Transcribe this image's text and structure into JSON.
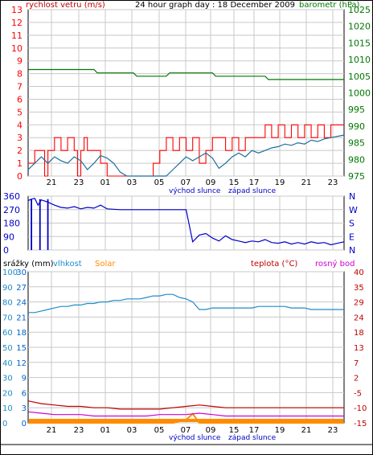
{
  "header": {
    "title": "24 hour graph day : 18 December 2009",
    "left_label": "rychlost vetru (m/s)",
    "right_label": "barometr (hPa)"
  },
  "x_ticks": [
    "21",
    "23",
    "01",
    "03",
    "05",
    "07",
    "09",
    "15",
    "17",
    "19",
    "21",
    "23"
  ],
  "sun_labels": {
    "sunrise": "východ slunce",
    "sunset": "západ slunce"
  },
  "colors": {
    "wind": "#ff0000",
    "wind_avg": "#1e6e9a",
    "barometer": "#007800",
    "direction": "#0000c8",
    "humidity": "#1e8cc8",
    "solar": "#ff8c00",
    "temperature": "#c00000",
    "dewpoint": "#d000d0",
    "precip_axis": "#0064c8",
    "grid": "#c8c8c8"
  },
  "chart_data": [
    {
      "type": "line",
      "title": "24 hour graph day : 18 December 2009",
      "ylabel_left": "rychlost vetru (m/s)",
      "ylabel_right": "barometr (hPa)",
      "ylim_left": [
        0,
        13
      ],
      "ylim_right": [
        975,
        1025
      ],
      "left_ticks": [
        "0",
        "1",
        "2",
        "3",
        "4",
        "5",
        "6",
        "7",
        "8",
        "9",
        "10",
        "11",
        "12",
        "13"
      ],
      "right_ticks": [
        "975",
        "980",
        "985",
        "990",
        "995",
        "1000",
        "1005",
        "1010",
        "1015",
        "1020",
        "1025"
      ],
      "x_ticks": [
        "21",
        "23",
        "01",
        "03",
        "05",
        "07",
        "09",
        "15",
        "17",
        "19",
        "21",
        "23"
      ],
      "grid": true,
      "series": [
        {
          "name": "rychlost vetru (m/s)",
          "axis": "left",
          "color": "#ff0000",
          "x": [
            0,
            1,
            2,
            2.5,
            3,
            4,
            5,
            6,
            7,
            7.5,
            8,
            8.5,
            9,
            10,
            11,
            12,
            13,
            14,
            15,
            16,
            17,
            18,
            19,
            20,
            21,
            22,
            23,
            24,
            25,
            26,
            27,
            28,
            29,
            30,
            31,
            32,
            33,
            34,
            35,
            36,
            37,
            38,
            39,
            40,
            41,
            42,
            43,
            44,
            45,
            46,
            47,
            48
          ],
          "values": [
            1,
            2,
            2,
            0,
            2,
            3,
            2,
            3,
            2,
            0,
            2,
            3,
            2,
            2,
            1,
            0,
            0,
            0,
            0,
            0,
            0,
            0,
            1,
            2,
            3,
            2,
            3,
            2,
            3,
            1,
            2,
            3,
            3,
            2,
            3,
            2,
            3,
            3,
            3,
            4,
            3,
            4,
            3,
            4,
            3,
            4,
            3,
            4,
            3,
            4,
            4,
            4
          ]
        },
        {
          "name": "",
          "axis": "left",
          "color": "#1e6e9a",
          "x": [
            0,
            1,
            2,
            3,
            4,
            5,
            6,
            7,
            8,
            9,
            10,
            11,
            12,
            13,
            14,
            15,
            16,
            17,
            18,
            19,
            20,
            21,
            22,
            23,
            24,
            25,
            26,
            27,
            28,
            29,
            30,
            31,
            32,
            33,
            34,
            35,
            36,
            37,
            38,
            39,
            40,
            41,
            42,
            43,
            44,
            45,
            46,
            47,
            48
          ],
          "values": [
            0.5,
            1,
            1.5,
            1,
            1.5,
            1.2,
            1,
            1.5,
            1.2,
            0.5,
            1,
            1.6,
            1.4,
            1,
            0.3,
            0,
            0,
            0,
            0,
            0,
            0,
            0,
            0.5,
            1,
            1.5,
            1.2,
            1.5,
            1.8,
            1.4,
            0.6,
            1,
            1.5,
            1.8,
            1.5,
            2,
            1.8,
            2,
            2.2,
            2.3,
            2.5,
            2.4,
            2.6,
            2.5,
            2.8,
            2.7,
            2.9,
            3,
            3.1,
            3.2
          ]
        },
        {
          "name": "barometr (hPa)",
          "axis": "right",
          "color": "#007800",
          "x": [
            0,
            10,
            10.5,
            16,
            16.5,
            21,
            21.5,
            28,
            28.5,
            36,
            36.5,
            44,
            44.5,
            48
          ],
          "values": [
            1007,
            1007,
            1006,
            1006,
            1005,
            1005,
            1006,
            1006,
            1005,
            1005,
            1004,
            1004,
            1004,
            1004
          ]
        }
      ]
    },
    {
      "type": "line",
      "ylabel_left": "",
      "ylim": [
        0,
        360
      ],
      "left_ticks": [
        "0",
        "90",
        "180",
        "270",
        "360"
      ],
      "right_ticks": [
        "N",
        "W",
        "S",
        "E",
        "N"
      ],
      "x_ticks": [
        "21",
        "23",
        "01",
        "03",
        "05",
        "07",
        "09",
        "15",
        "17",
        "19",
        "21",
        "23"
      ],
      "grid": true,
      "series": [
        {
          "name": "",
          "color": "#0000c8",
          "x": [
            0,
            0.5,
            1,
            1.5,
            2,
            3,
            4,
            5,
            6,
            7,
            8,
            9,
            10,
            11,
            12,
            14,
            16,
            18,
            20,
            22,
            24,
            25,
            26,
            27,
            28,
            29,
            30,
            31,
            32,
            33,
            34,
            35,
            36,
            37,
            38,
            39,
            40,
            41,
            42,
            43,
            44,
            45,
            46,
            47,
            48
          ],
          "values": [
            330,
            340,
            345,
            300,
            335,
            320,
            300,
            285,
            280,
            290,
            275,
            285,
            280,
            300,
            275,
            270,
            270,
            270,
            270,
            270,
            270,
            55,
            100,
            110,
            80,
            60,
            95,
            70,
            60,
            50,
            60,
            55,
            70,
            50,
            45,
            55,
            40,
            50,
            40,
            55,
            45,
            50,
            35,
            45,
            55
          ]
        }
      ]
    },
    {
      "type": "line",
      "labels_top": [
        "srážky (mm)",
        "vlhkost",
        "Solar",
        "teplota (°C)",
        "rosný bod"
      ],
      "ylim_precip": [
        0,
        30
      ],
      "ylim_humidity": [
        0,
        100
      ],
      "ylim_temp": [
        -15,
        40
      ],
      "left_ticks_precip": [
        "0",
        "3",
        "6",
        "9",
        "12",
        "15",
        "18",
        "21",
        "24",
        "27",
        "30"
      ],
      "left_ticks_humidity": [
        "0",
        "10",
        "20",
        "30",
        "40",
        "50",
        "60",
        "70",
        "80",
        "90",
        "100"
      ],
      "right_ticks_temp": [
        "-15",
        "-10",
        "-5",
        "2",
        "7",
        "13",
        "18",
        "24",
        "29",
        "35",
        "40"
      ],
      "x_ticks": [
        "21",
        "23",
        "01",
        "03",
        "05",
        "07",
        "09",
        "15",
        "17",
        "19",
        "21",
        "23"
      ],
      "grid": true,
      "series": [
        {
          "name": "vlhkost",
          "color": "#1e8cc8",
          "x": [
            0,
            1,
            2,
            3,
            4,
            5,
            6,
            7,
            8,
            9,
            10,
            11,
            12,
            13,
            14,
            15,
            16,
            17,
            18,
            19,
            20,
            21,
            22,
            23,
            24,
            25,
            26,
            27,
            28,
            29,
            30,
            31,
            32,
            33,
            34,
            35,
            36,
            37,
            38,
            39,
            40,
            41,
            42,
            43,
            44,
            45,
            46,
            47,
            48
          ],
          "values": [
            73,
            73,
            74,
            75,
            76,
            77,
            77,
            78,
            78,
            79,
            79,
            80,
            80,
            81,
            81,
            82,
            82,
            82,
            83,
            84,
            84,
            85,
            85,
            83,
            82,
            80,
            75,
            75,
            76,
            76,
            76,
            76,
            76,
            76,
            76,
            77,
            77,
            77,
            77,
            77,
            76,
            76,
            76,
            75,
            75,
            75,
            75,
            75,
            75
          ]
        },
        {
          "name": "teplota (°C)",
          "color": "#c00000",
          "x": [
            0,
            2,
            4,
            6,
            8,
            10,
            12,
            14,
            16,
            18,
            20,
            22,
            24,
            26,
            28,
            30,
            32,
            34,
            36,
            38,
            40,
            42,
            44,
            46,
            48
          ],
          "values": [
            -7,
            -8,
            -8.5,
            -9,
            -9,
            -9.5,
            -9.5,
            -10,
            -10,
            -10,
            -10,
            -9.5,
            -9,
            -8.5,
            -9,
            -9.5,
            -9.5,
            -9.5,
            -9.5,
            -9.5,
            -9.5,
            -9.5,
            -9.5,
            -9.5,
            -9.5
          ]
        },
        {
          "name": "rosný bod",
          "color": "#d000d0",
          "x": [
            0,
            2,
            4,
            6,
            8,
            10,
            12,
            14,
            16,
            18,
            20,
            22,
            24,
            26,
            28,
            30,
            32,
            34,
            36,
            38,
            40,
            42,
            44,
            46,
            48
          ],
          "values": [
            -11,
            -11.5,
            -12,
            -12,
            -12,
            -12.5,
            -12.5,
            -12.5,
            -12.5,
            -12.5,
            -12,
            -12,
            -12,
            -11.5,
            -12,
            -12.5,
            -12.5,
            -12.5,
            -12.5,
            -12.5,
            -12.5,
            -12.5,
            -12.5,
            -12.5,
            -12.5
          ]
        },
        {
          "name": "Solar",
          "color": "#ff8c00",
          "x": [
            0,
            22,
            23,
            24,
            25,
            26,
            48
          ],
          "values": [
            0,
            0,
            0.3,
            0.6,
            1.8,
            0,
            0
          ]
        }
      ]
    }
  ]
}
